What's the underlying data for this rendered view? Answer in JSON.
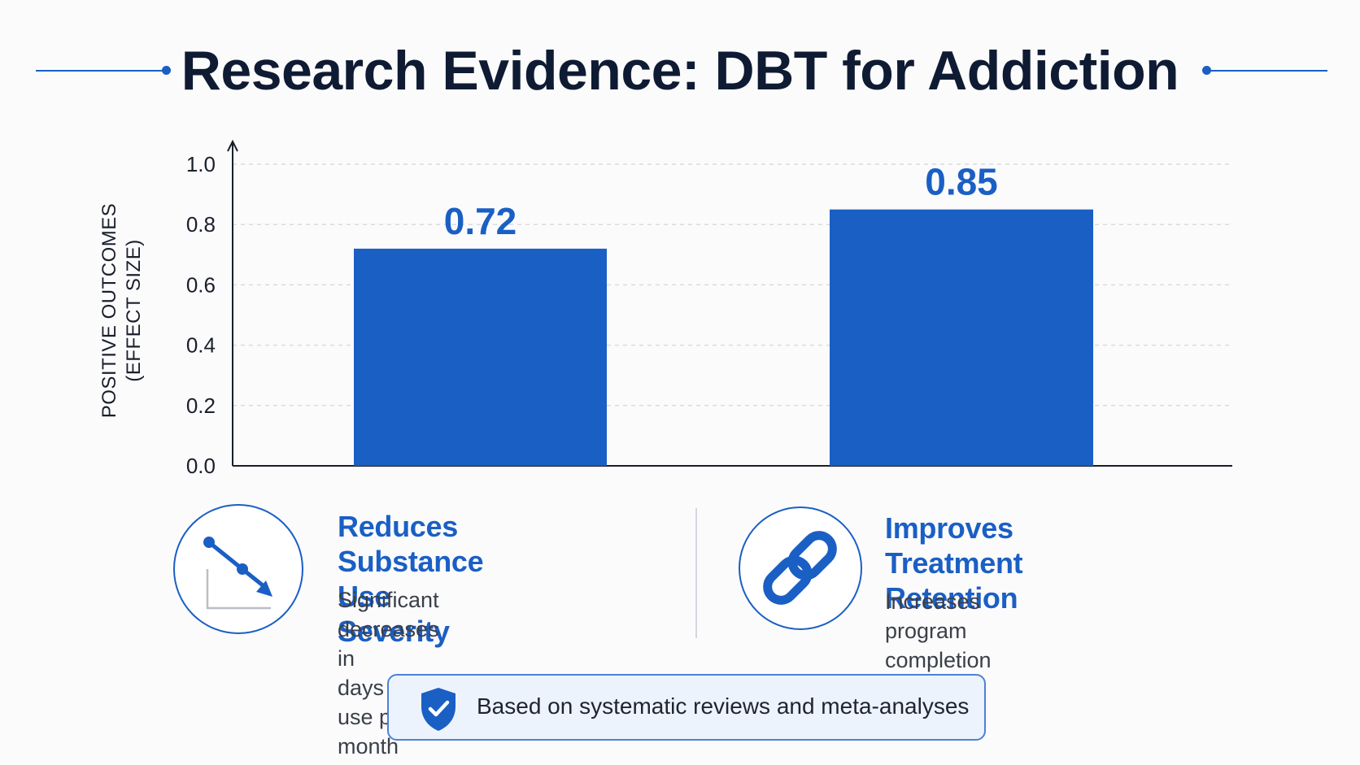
{
  "header": {
    "title": "Research Evidence: DBT for Addiction"
  },
  "chart_data": {
    "type": "bar",
    "categories": [
      "Reduces Substance Use Severity",
      "Improves Treatment Retention"
    ],
    "values": [
      0.72,
      0.85
    ],
    "value_labels": [
      "0.72",
      "0.85"
    ],
    "ylabel_lines": [
      "POSITIVE OUTCOMES",
      "(EFFECT SIZE)"
    ],
    "ylim": [
      0,
      1.0
    ],
    "yticks": [
      "0.0",
      "0.2",
      "0.4",
      "0.6",
      "0.8",
      "1.0"
    ],
    "grid": true,
    "bar_color": "#1a5fc4"
  },
  "features": [
    {
      "icon": "trend-down-icon",
      "heading_lines": [
        "Reduces Substance",
        "Use Severity"
      ],
      "desc_lines": [
        "Significant decreases in",
        "days of use per month"
      ]
    },
    {
      "icon": "link-icon",
      "heading_lines": [
        "Improves Treatment",
        "Retention"
      ],
      "desc_lines": [
        "Increases program",
        "completion rates"
      ]
    }
  ],
  "footer": {
    "icon": "shield-check-icon",
    "text": "Based on systematic reviews and meta-analyses"
  },
  "colors": {
    "accent": "#1a5fc4",
    "title": "#0f1b33"
  }
}
